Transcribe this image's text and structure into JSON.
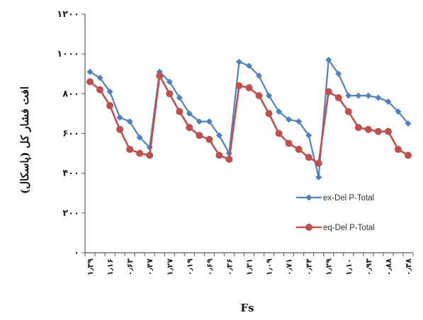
{
  "chart_data": {
    "type": "line",
    "xlabel": "Fs",
    "ylabel": "افت فشار کل (پاسکال)",
    "ylim": [
      0,
      1200
    ],
    "yticks": [
      "۰",
      "۲۰۰",
      "۴۰۰",
      "۶۰۰",
      "۸۰۰",
      "۱۰۰۰",
      "۱۲۰۰"
    ],
    "ytick_values": [
      0,
      200,
      400,
      600,
      800,
      1000,
      1200
    ],
    "categories": [
      "۱٫۳۹",
      "",
      "۱٫۱۶",
      "",
      "۰٫۶۳",
      "",
      "۰٫۴۷",
      "",
      "۱٫۲۷",
      "",
      "۰٫۱۹",
      "",
      "۰٫۶۹",
      "",
      "۰٫۳۶",
      "",
      "۱٫۳۱",
      "",
      "۱٫۰۹",
      "",
      "۰٫۷۱",
      "",
      "۰٫۴۴",
      "",
      "۱٫۲۹",
      "",
      "۱٫۱۰",
      "",
      "۰٫۹۳",
      "",
      "۰٫۸۸",
      "",
      "۰٫۴۸"
    ],
    "grid": false,
    "legend_position": "right-center",
    "series": [
      {
        "name": "ex-Del P-Total",
        "color": "#4F81BD",
        "marker": "diamond",
        "values": [
          910,
          880,
          810,
          680,
          660,
          580,
          530,
          910,
          860,
          780,
          700,
          660,
          660,
          590,
          500,
          960,
          940,
          890,
          790,
          710,
          670,
          660,
          590,
          380,
          970,
          900,
          790,
          790,
          790,
          780,
          760,
          710,
          650
        ]
      },
      {
        "name": "eq-Del P-Total",
        "color": "#C0504D",
        "marker": "circle",
        "values": [
          860,
          820,
          740,
          620,
          520,
          500,
          490,
          890,
          800,
          710,
          630,
          590,
          570,
          490,
          470,
          840,
          830,
          790,
          700,
          600,
          550,
          520,
          480,
          450,
          810,
          780,
          710,
          630,
          620,
          610,
          610,
          520,
          490
        ]
      }
    ]
  }
}
